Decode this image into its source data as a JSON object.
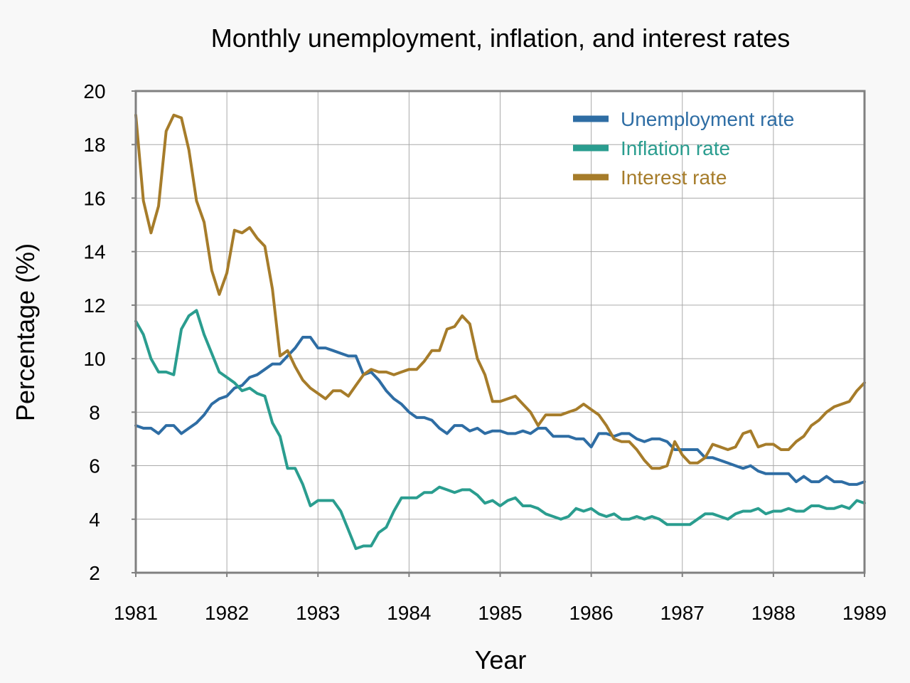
{
  "chart_data": {
    "type": "line",
    "title": "Monthly unemployment, inflation, and interest rates",
    "xlabel": "Year",
    "ylabel": "Percentage (%)",
    "xlim": [
      1981,
      1989
    ],
    "ylim": [
      2,
      20
    ],
    "x_ticks": [
      "1981",
      "1982",
      "1983",
      "1984",
      "1985",
      "1986",
      "1987",
      "1988",
      "1989"
    ],
    "y_ticks": [
      "2",
      "4",
      "6",
      "8",
      "10",
      "12",
      "14",
      "16",
      "18",
      "20"
    ],
    "grid": true,
    "legend_position": "top-right",
    "x_start": "1981-01",
    "x_step": "monthly",
    "series": [
      {
        "name": "Unemployment rate",
        "color": "#2e6da4",
        "values": [
          7.5,
          7.4,
          7.4,
          7.2,
          7.5,
          7.5,
          7.2,
          7.4,
          7.6,
          7.9,
          8.3,
          8.5,
          8.6,
          8.9,
          9.0,
          9.3,
          9.4,
          9.6,
          9.8,
          9.8,
          10.1,
          10.4,
          10.8,
          10.8,
          10.4,
          10.4,
          10.3,
          10.2,
          10.1,
          10.1,
          9.4,
          9.5,
          9.2,
          8.8,
          8.5,
          8.3,
          8.0,
          7.8,
          7.8,
          7.7,
          7.4,
          7.2,
          7.5,
          7.5,
          7.3,
          7.4,
          7.2,
          7.3,
          7.3,
          7.2,
          7.2,
          7.3,
          7.2,
          7.4,
          7.4,
          7.1,
          7.1,
          7.1,
          7.0,
          7.0,
          6.7,
          7.2,
          7.2,
          7.1,
          7.2,
          7.2,
          7.0,
          6.9,
          7.0,
          7.0,
          6.9,
          6.6,
          6.6,
          6.6,
          6.6,
          6.3,
          6.3,
          6.2,
          6.1,
          6.0,
          5.9,
          6.0,
          5.8,
          5.7,
          5.7,
          5.7,
          5.7,
          5.4,
          5.6,
          5.4,
          5.4,
          5.6,
          5.4,
          5.4,
          5.3,
          5.3,
          5.4
        ]
      },
      {
        "name": "Inflation rate",
        "color": "#2a9d8f",
        "values": [
          11.4,
          10.9,
          10.0,
          9.5,
          9.5,
          9.4,
          11.1,
          11.6,
          11.8,
          10.9,
          10.2,
          9.5,
          9.3,
          9.1,
          8.8,
          8.9,
          8.7,
          8.6,
          7.6,
          7.1,
          5.9,
          5.9,
          5.3,
          4.5,
          4.7,
          4.7,
          4.7,
          4.3,
          3.6,
          2.9,
          3.0,
          3.0,
          3.5,
          3.7,
          4.3,
          4.8,
          4.8,
          4.8,
          5.0,
          5.0,
          5.2,
          5.1,
          5.0,
          5.1,
          5.1,
          4.9,
          4.6,
          4.7,
          4.5,
          4.7,
          4.8,
          4.5,
          4.5,
          4.4,
          4.2,
          4.1,
          4.0,
          4.1,
          4.4,
          4.3,
          4.4,
          4.2,
          4.1,
          4.2,
          4.0,
          4.0,
          4.1,
          4.0,
          4.1,
          4.0,
          3.8,
          3.8,
          3.8,
          3.8,
          4.0,
          4.2,
          4.2,
          4.1,
          4.0,
          4.2,
          4.3,
          4.3,
          4.4,
          4.2,
          4.3,
          4.3,
          4.4,
          4.3,
          4.3,
          4.5,
          4.5,
          4.4,
          4.4,
          4.5,
          4.4,
          4.7,
          4.6
        ]
      },
      {
        "name": "Interest rate",
        "color": "#a67c2a",
        "values": [
          19.1,
          15.9,
          14.7,
          15.7,
          18.5,
          19.1,
          19.0,
          17.8,
          15.9,
          15.1,
          13.3,
          12.4,
          13.2,
          14.8,
          14.7,
          14.9,
          14.5,
          14.2,
          12.6,
          10.1,
          10.3,
          9.7,
          9.2,
          8.9,
          8.7,
          8.5,
          8.8,
          8.8,
          8.6,
          9.0,
          9.4,
          9.6,
          9.5,
          9.5,
          9.4,
          9.5,
          9.6,
          9.6,
          9.9,
          10.3,
          10.3,
          11.1,
          11.2,
          11.6,
          11.3,
          10.0,
          9.4,
          8.4,
          8.4,
          8.5,
          8.6,
          8.3,
          8.0,
          7.5,
          7.9,
          7.9,
          7.9,
          8.0,
          8.1,
          8.3,
          8.1,
          7.9,
          7.5,
          7.0,
          6.9,
          6.9,
          6.6,
          6.2,
          5.9,
          5.9,
          6.0,
          6.9,
          6.4,
          6.1,
          6.1,
          6.3,
          6.8,
          6.7,
          6.6,
          6.7,
          7.2,
          7.3,
          6.7,
          6.8,
          6.8,
          6.6,
          6.6,
          6.9,
          7.1,
          7.5,
          7.7,
          8.0,
          8.2,
          8.3,
          8.4,
          8.8,
          9.1
        ]
      }
    ]
  }
}
